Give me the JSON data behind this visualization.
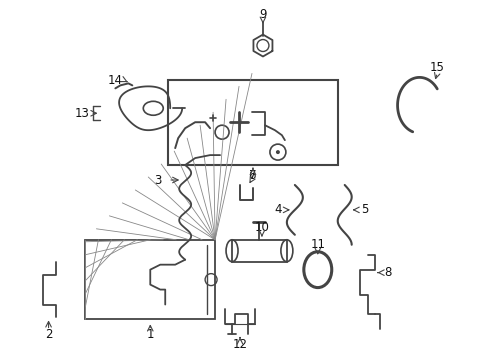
{
  "background_color": "#ffffff",
  "fig_width": 4.89,
  "fig_height": 3.6,
  "dpi": 100,
  "line_color": "#444444",
  "label_color": "#111111",
  "label_fontsize": 8.5
}
